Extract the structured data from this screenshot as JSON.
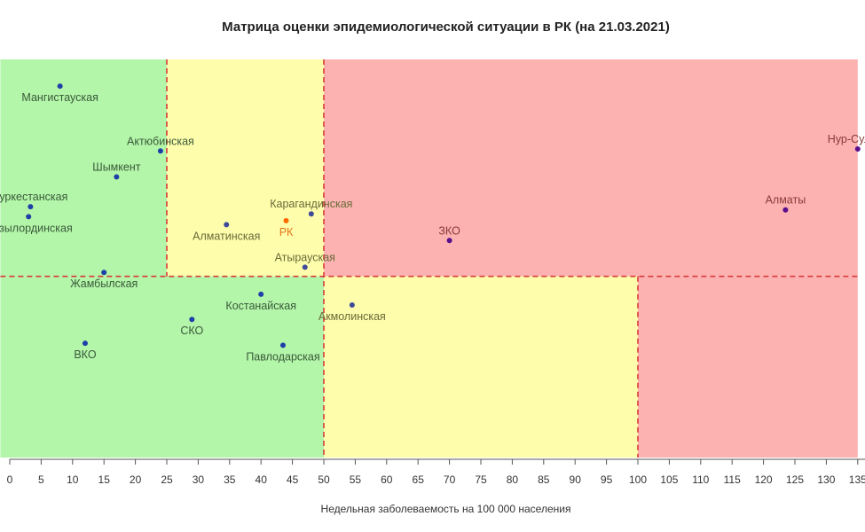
{
  "chart_data": {
    "type": "scatter",
    "title": "Матрица оценки эпидемиологической ситуации в РК (на 21.03.2021)",
    "xlabel": "Недельная заболеваемость на 100 000 населения",
    "ylabel": "",
    "xlim": [
      -1.5,
      135
    ],
    "x_ticks": [
      0,
      5,
      10,
      15,
      20,
      25,
      30,
      35,
      40,
      45,
      50,
      55,
      60,
      65,
      70,
      75,
      80,
      85,
      90,
      95,
      100,
      105,
      110,
      115,
      120,
      125,
      130,
      135
    ],
    "x_tick_labels": [
      "0",
      "5",
      "10",
      "15",
      "20",
      "25",
      "30",
      "35",
      "40",
      "45",
      "50",
      "55",
      "60",
      "65",
      "70",
      "75",
      "80",
      "85",
      "90",
      "95",
      "100",
      "105",
      "110",
      "115",
      "120",
      "125",
      "130",
      "135"
    ],
    "y_axis_shown": false,
    "ylim": [
      0,
      1
    ],
    "grid": false,
    "zones": [
      {
        "x0": -1.5,
        "x1": 25,
        "y0": 0.455,
        "y1": 1,
        "color": "#b3f5a9"
      },
      {
        "x0": 25,
        "x1": 50,
        "y0": 0.455,
        "y1": 1,
        "color": "#fdfdab"
      },
      {
        "x0": 50,
        "x1": 135,
        "y0": 0.455,
        "y1": 1,
        "color": "#fbb2b0"
      },
      {
        "x0": -1.5,
        "x1": 50,
        "y0": 0,
        "y1": 0.455,
        "color": "#b3f5a9"
      },
      {
        "x0": 50,
        "x1": 100,
        "y0": 0,
        "y1": 0.455,
        "color": "#fdfdab"
      },
      {
        "x0": 100,
        "x1": 135,
        "y0": 0,
        "y1": 0.455,
        "color": "#fbb2b0"
      }
    ],
    "threshold_lines": [
      {
        "orientation": "vertical",
        "x": 25,
        "y0": 0.455,
        "y1": 1
      },
      {
        "orientation": "vertical",
        "x": 50,
        "y0": 0,
        "y1": 1
      },
      {
        "orientation": "vertical",
        "x": 100,
        "y0": 0,
        "y1": 0.455
      },
      {
        "orientation": "horizontal",
        "y": 0.455,
        "x0": -1.5,
        "x1": 135
      }
    ],
    "threshold_line_color": "#d83a3a",
    "points": [
      {
        "name": "Мангистауская",
        "x": 8,
        "y": 0.933,
        "color": "#1f3fa8",
        "label_color": "#3a5a3a",
        "label_pos": "below"
      },
      {
        "name": "Актюбинская",
        "x": 24,
        "y": 0.77,
        "color": "#1f3fa8",
        "label_color": "#3a5a3a",
        "label_pos": "above"
      },
      {
        "name": "Шымкент",
        "x": 17,
        "y": 0.705,
        "color": "#1f3fa8",
        "label_color": "#3a5a3a",
        "label_pos": "above"
      },
      {
        "name": "Туркестанская",
        "x": 3.3,
        "y": 0.63,
        "color": "#1f3fa8",
        "label_color": "#3a5a3a",
        "label_pos": "above"
      },
      {
        "name": "Кызылординская",
        "x": 3,
        "y": 0.605,
        "color": "#1f3fa8",
        "label_color": "#3a5a3a",
        "label_pos": "below"
      },
      {
        "name": "Карагандинская",
        "x": 48,
        "y": 0.612,
        "color": "#3f4a9a",
        "label_color": "#6b6a3a",
        "label_pos": "above"
      },
      {
        "name": "Алматинская",
        "x": 34.5,
        "y": 0.585,
        "color": "#3f4a9a",
        "label_color": "#6b6a3a",
        "label_pos": "below"
      },
      {
        "name": "РК",
        "x": 44,
        "y": 0.595,
        "color": "#ff6a00",
        "label_color": "#e8731a",
        "label_pos": "below"
      },
      {
        "name": "Атырауская",
        "x": 47,
        "y": 0.478,
        "color": "#3f4a9a",
        "label_color": "#6b6a3a",
        "label_pos": "above"
      },
      {
        "name": "ЗКО",
        "x": 70,
        "y": 0.545,
        "color": "#5a0f8c",
        "label_color": "#8a3a3a",
        "label_pos": "above"
      },
      {
        "name": "Алматы",
        "x": 123.5,
        "y": 0.622,
        "color": "#5a0f8c",
        "label_color": "#8a3a3a",
        "label_pos": "above"
      },
      {
        "name": "Нур-Султан",
        "x": 135,
        "y": 0.775,
        "color": "#5a0f8c",
        "label_color": "#8a3a3a",
        "label_pos": "above"
      },
      {
        "name": "Жамбылская",
        "x": 15,
        "y": 0.465,
        "color": "#1f3fa8",
        "label_color": "#3a5a3a",
        "label_pos": "below"
      },
      {
        "name": "Костанайская",
        "x": 40,
        "y": 0.41,
        "color": "#1f3fa8",
        "label_color": "#3a5a3a",
        "label_pos": "below"
      },
      {
        "name": "СКО",
        "x": 29,
        "y": 0.347,
        "color": "#1f3fa8",
        "label_color": "#3a5a3a",
        "label_pos": "below"
      },
      {
        "name": "ВКО",
        "x": 12,
        "y": 0.287,
        "color": "#1f3fa8",
        "label_color": "#3a5a3a",
        "label_pos": "below"
      },
      {
        "name": "Павлодарская",
        "x": 43.5,
        "y": 0.282,
        "color": "#1f3fa8",
        "label_color": "#3a5a3a",
        "label_pos": "below"
      },
      {
        "name": "Акмолинская",
        "x": 54.5,
        "y": 0.383,
        "color": "#3f4a9a",
        "label_color": "#6b6a3a",
        "label_pos": "below"
      }
    ]
  }
}
